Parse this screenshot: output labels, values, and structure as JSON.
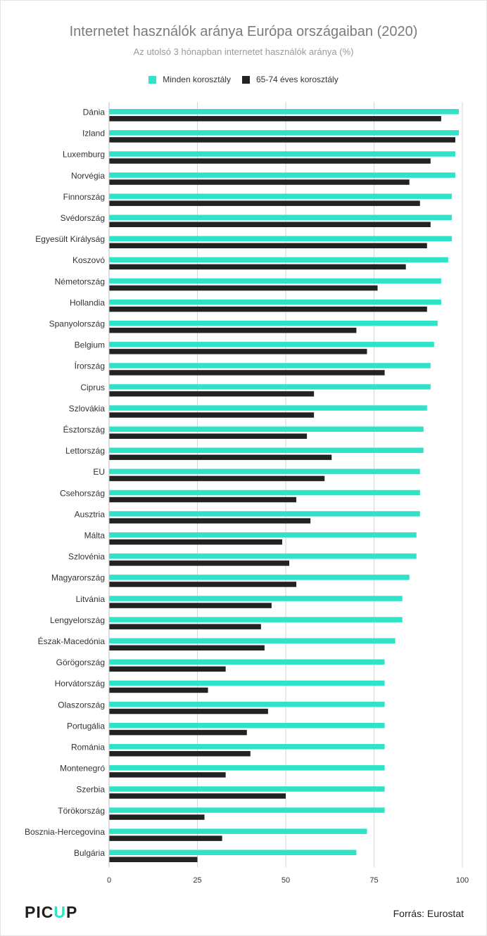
{
  "title": "Internetet használók aránya Európa országaiban (2020)",
  "subtitle": "Az utolsó 3 hónapban internetet használók aránya (%)",
  "logo": {
    "prefix": "PIC",
    "accent": "U",
    "suffix": "P"
  },
  "source": "Forrás: Eurostat",
  "colors": {
    "series_all": "#2ee3c7",
    "series_senior": "#222222",
    "grid": "#d6d6d6"
  },
  "chart_data": {
    "type": "bar",
    "orientation": "horizontal",
    "title": "Internetet használók aránya Európa országaiban (2020)",
    "subtitle": "Az utolsó 3 hónapban internetet használók aránya (%)",
    "xlim": [
      0,
      100
    ],
    "x_ticks": [
      0,
      25,
      50,
      75,
      100
    ],
    "grid": true,
    "legend_position": "top-center",
    "categories": [
      "Dánia",
      "Izland",
      "Luxemburg",
      "Norvégia",
      "Finnország",
      "Svédország",
      "Egyesült Királyság",
      "Koszovó",
      "Németország",
      "Hollandia",
      "Spanyolország",
      "Belgium",
      "Írország",
      "Ciprus",
      "Szlovákia",
      "Észtország",
      "Lettország",
      "EU",
      "Csehország",
      "Ausztria",
      "Málta",
      "Szlovénia",
      "Magyarország",
      "Litvánia",
      "Lengyelország",
      "Észak-Macedónia",
      "Görögország",
      "Horvátország",
      "Olaszország",
      "Portugália",
      "Románia",
      "Montenegró",
      "Szerbia",
      "Törökország",
      "Bosznia-Hercegovina",
      "Bulgária"
    ],
    "series": [
      {
        "name": "Minden korosztály",
        "color": "#2ee3c7",
        "values": [
          99,
          99,
          98,
          98,
          97,
          97,
          97,
          96,
          94,
          94,
          93,
          92,
          91,
          91,
          90,
          89,
          89,
          88,
          88,
          88,
          87,
          87,
          85,
          83,
          83,
          81,
          78,
          78,
          78,
          78,
          78,
          78,
          78,
          78,
          73,
          70
        ]
      },
      {
        "name": "65-74 éves korosztály",
        "color": "#222222",
        "values": [
          94,
          98,
          91,
          85,
          88,
          91,
          90,
          84,
          76,
          90,
          70,
          73,
          78,
          58,
          58,
          56,
          63,
          61,
          53,
          57,
          49,
          51,
          53,
          46,
          43,
          44,
          33,
          28,
          45,
          39,
          40,
          33,
          50,
          27,
          32,
          25
        ]
      }
    ]
  }
}
